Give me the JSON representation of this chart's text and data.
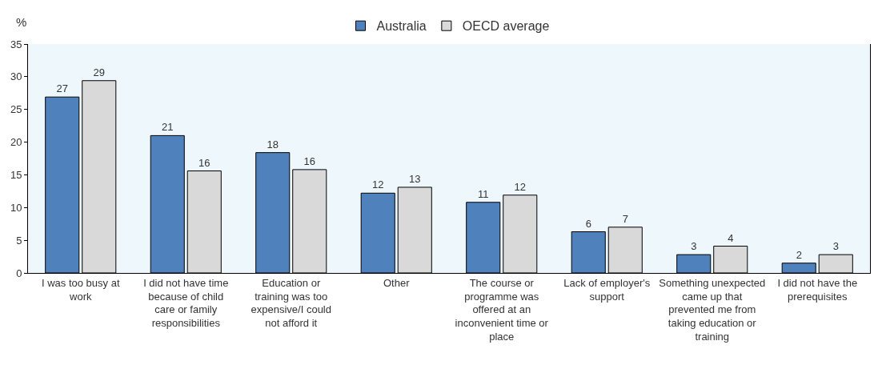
{
  "chart_data": {
    "type": "bar",
    "ylabel": "%",
    "legend": "top",
    "categories": [
      "I was too busy at work",
      "I did not have time because of child care or family responsibilities",
      "Education or training was too expensive/I could not afford it",
      "Other",
      "The course or programme was offered at an inconvenient time or place",
      "Lack of employer's support",
      "Something unexpected came up that prevented me from taking education or training",
      "I did not have the prerequisites"
    ],
    "series": [
      {
        "name": "Australia",
        "color": "#4f81bd",
        "values": [
          26.9,
          21.0,
          18.4,
          12.2,
          10.8,
          6.3,
          2.8,
          1.5
        ],
        "value_labels": [
          "27",
          "21",
          "18",
          "12",
          "11",
          "6",
          "3",
          "2"
        ]
      },
      {
        "name": "OECD average",
        "color": "#d9d9d9",
        "values": [
          29.4,
          15.6,
          15.8,
          13.1,
          11.9,
          7.0,
          4.1,
          2.8
        ],
        "value_labels": [
          "29",
          "16",
          "16",
          "13",
          "12",
          "7",
          "4",
          "3"
        ]
      }
    ],
    "ylim": [
      0,
      35
    ],
    "yticks": [
      0,
      5,
      10,
      15,
      20,
      25,
      30,
      35
    ],
    "grid": false
  }
}
